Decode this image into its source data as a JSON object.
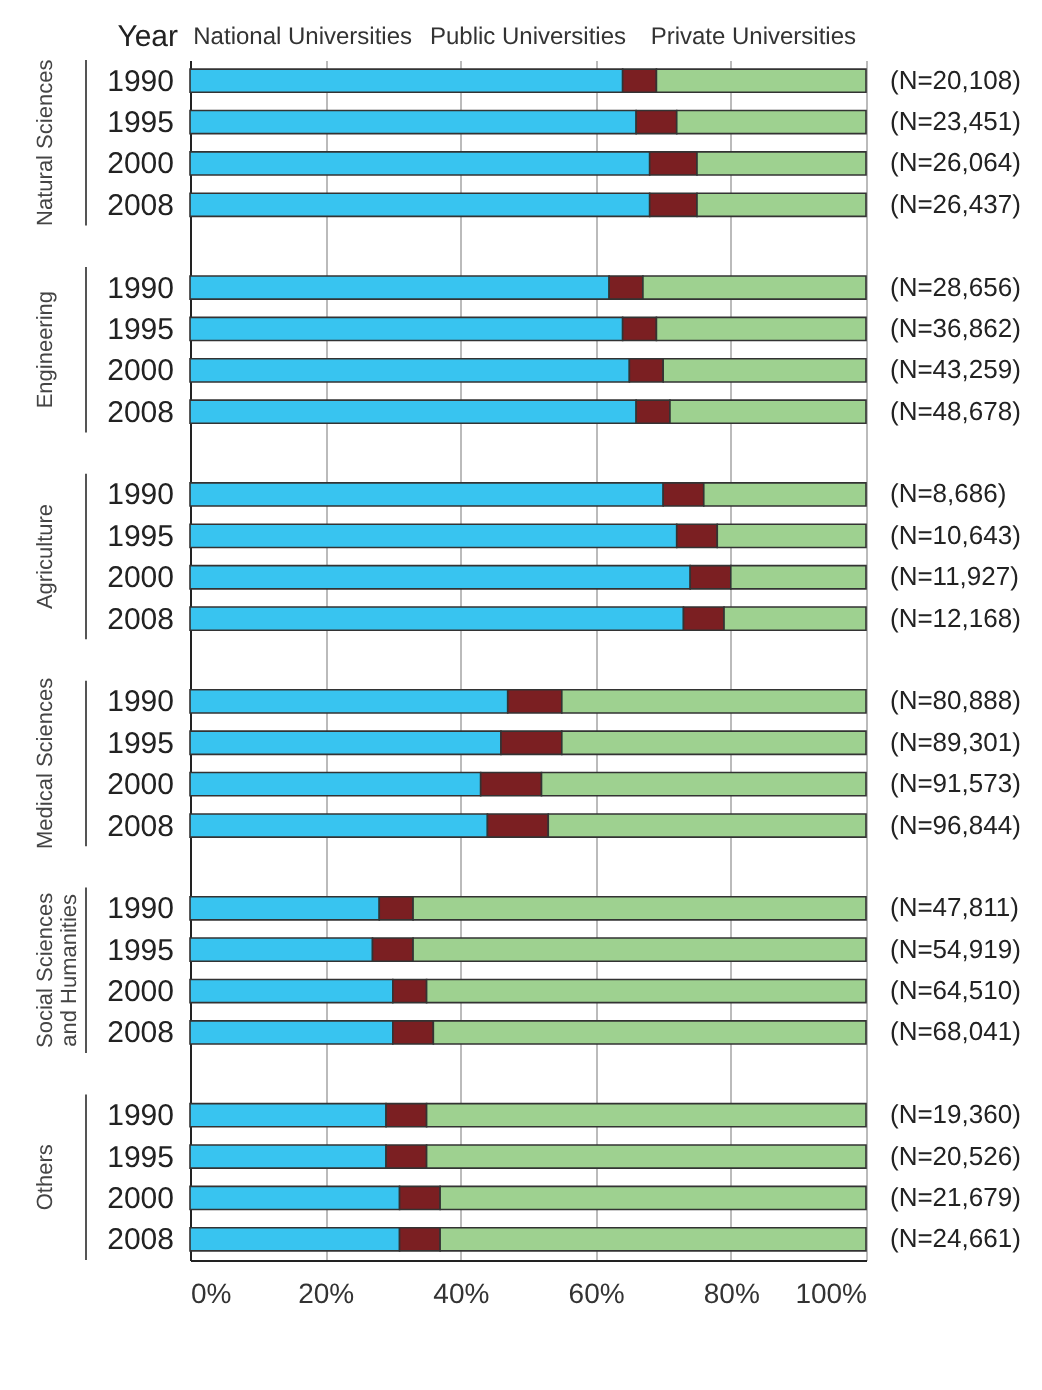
{
  "chart_data": {
    "type": "bar",
    "orientation": "horizontal",
    "stacked": true,
    "ylabel": "Year",
    "legend": "top",
    "grid": "x",
    "categories": [
      "1990",
      "1995",
      "2000",
      "2008",
      null,
      "1990",
      "1995",
      "2000",
      "2008",
      null,
      "1990",
      "1995",
      "2000",
      "2008",
      null,
      "1990",
      "1995",
      "2000",
      "2008",
      null,
      "1990",
      "1995",
      "2000",
      "2008",
      null,
      "1990",
      "1995",
      "2000",
      "2008"
    ],
    "series": [
      {
        "name": "National Universities",
        "color": "#38c4f0",
        "values": [
          64,
          66,
          68,
          68,
          null,
          62,
          64,
          65,
          66,
          null,
          70,
          72,
          74,
          73,
          null,
          47,
          46,
          43,
          44,
          null,
          28,
          27,
          30,
          30,
          null,
          29,
          29,
          31,
          31
        ]
      },
      {
        "name": "Public Universities",
        "color": "#7b1f22",
        "values": [
          5,
          6,
          7,
          7,
          null,
          5,
          5,
          5,
          5,
          null,
          6,
          6,
          6,
          6,
          null,
          8,
          9,
          9,
          9,
          null,
          5,
          6,
          5,
          6,
          null,
          6,
          6,
          6,
          6
        ]
      },
      {
        "name": "Private Universities",
        "color": "#9ed190",
        "values": [
          31,
          28,
          25,
          25,
          null,
          33,
          31,
          30,
          29,
          null,
          24,
          22,
          20,
          21,
          null,
          45,
          45,
          48,
          47,
          null,
          67,
          67,
          65,
          64,
          null,
          65,
          65,
          63,
          63
        ]
      }
    ],
    "xlim": [
      0,
      100
    ],
    "xticks": [
      {
        "value": 0,
        "label": "0%"
      },
      {
        "value": 20,
        "label": "20%"
      },
      {
        "value": 40,
        "label": "40%"
      },
      {
        "value": 60,
        "label": "60%"
      },
      {
        "value": 80,
        "label": "80%"
      },
      {
        "value": 100,
        "label": "100%"
      }
    ],
    "annotations": [
      "Natural Sciences",
      "Engineering",
      "Agriculture",
      "Medical Sciences",
      "Social Sciences and Humanities",
      "Others",
      "(N=20,108)",
      "(N=23,451)",
      "(N=26,064)",
      "(N=26,437)",
      "(N=28,656)",
      "(N=36,862)",
      "(N=43,259)",
      "(N=48,678)",
      "(N=8,686)",
      "(N=10,643)",
      "(N=11,927)",
      "(N=12,168)",
      "(N=80,888)",
      "(N=89,301)",
      "(N=91,573)",
      "(N=96,844)",
      "(N=47,811)",
      "(N=54,919)",
      "(N=64,510)",
      "(N=68,041)",
      "(N=19,360)",
      "(N=20,526)",
      "(N=21,679)",
      "(N=24,661)"
    ]
  }
}
